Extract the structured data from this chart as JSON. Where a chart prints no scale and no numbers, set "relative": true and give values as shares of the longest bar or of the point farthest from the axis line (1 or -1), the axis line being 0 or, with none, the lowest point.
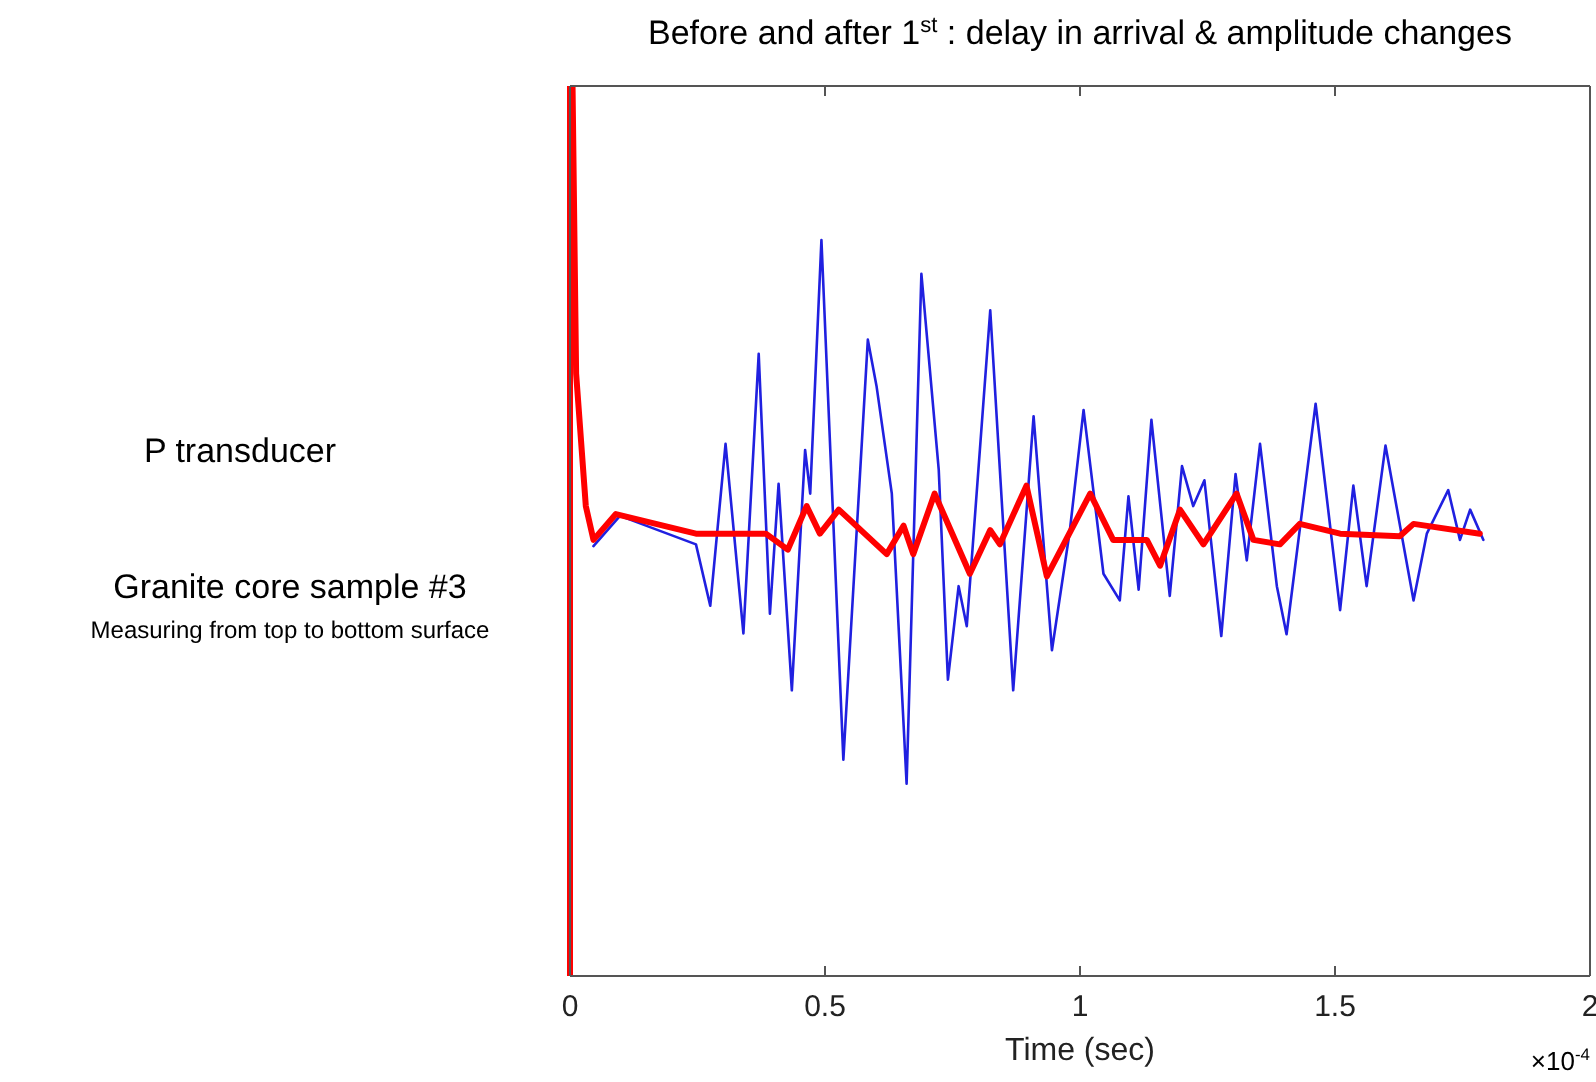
{
  "chart_data": {
    "type": "line",
    "relative": true,
    "title": "Before and after 1$^{st}$ : delay in arrival & amplitude changes",
    "xlabel": "Time (sec)",
    "annotations": [
      "P transducer",
      "Granite core sample #3",
      "Measuring from top to bottom surface",
      "×10$^{-4}$"
    ],
    "xlim": [
      0,
      2
    ],
    "xticks": [
      0,
      0.5,
      1,
      1.5,
      2
    ],
    "tick_labels": "x",
    "grid": false,
    "marker": "none",
    "line_style": "solid",
    "series": [
      {
        "color": "#2020e0",
        "x": [
          0.046,
          0.098,
          0.247,
          0.275,
          0.305,
          0.34,
          0.37,
          0.392,
          0.409,
          0.435,
          0.461,
          0.471,
          0.493,
          0.536,
          0.584,
          0.601,
          0.631,
          0.66,
          0.689,
          0.723,
          0.741,
          0.762,
          0.778,
          0.824,
          0.869,
          0.909,
          0.945,
          0.98,
          1.007,
          1.046,
          1.078,
          1.095,
          1.115,
          1.14,
          1.176,
          1.2,
          1.222,
          1.244,
          1.277,
          1.305,
          1.327,
          1.353,
          1.386,
          1.405,
          1.462,
          1.51,
          1.536,
          1.562,
          1.599,
          1.654,
          1.68,
          1.722,
          1.745,
          1.765,
          1.791
        ],
        "values": [
          0.483,
          0.517,
          0.485,
          0.416,
          0.598,
          0.385,
          0.699,
          0.407,
          0.553,
          0.321,
          0.591,
          0.542,
          0.827,
          0.243,
          0.715,
          0.663,
          0.542,
          0.216,
          0.789,
          0.569,
          0.333,
          0.438,
          0.393,
          0.748,
          0.321,
          0.629,
          0.366,
          0.5,
          0.636,
          0.452,
          0.422,
          0.539,
          0.434,
          0.625,
          0.427,
          0.573,
          0.528,
          0.557,
          0.382,
          0.564,
          0.467,
          0.598,
          0.438,
          0.384,
          0.643,
          0.411,
          0.551,
          0.438,
          0.596,
          0.422,
          0.497,
          0.546,
          0.49,
          0.524,
          0.49
        ]
      },
      {
        "color": "#ff0000",
        "x": [
          0,
          0,
          0.005,
          0.012,
          0.031,
          0.046,
          0.09,
          0.247,
          0.384,
          0.427,
          0.464,
          0.49,
          0.527,
          0.621,
          0.654,
          0.673,
          0.715,
          0.784,
          0.824,
          0.843,
          0.895,
          0.935,
          1.02,
          1.065,
          1.131,
          1.157,
          1.196,
          1.242,
          1.307,
          1.34,
          1.392,
          1.431,
          1.51,
          1.627,
          1.654,
          1.784
        ],
        "values": [
          0,
          1,
          1,
          0.677,
          0.528,
          0.49,
          0.519,
          0.497,
          0.497,
          0.479,
          0.528,
          0.497,
          0.524,
          0.474,
          0.506,
          0.474,
          0.542,
          0.452,
          0.501,
          0.485,
          0.551,
          0.449,
          0.542,
          0.49,
          0.49,
          0.461,
          0.524,
          0.485,
          0.542,
          0.49,
          0.485,
          0.508,
          0.497,
          0.494,
          0.508,
          0.497
        ]
      }
    ]
  }
}
